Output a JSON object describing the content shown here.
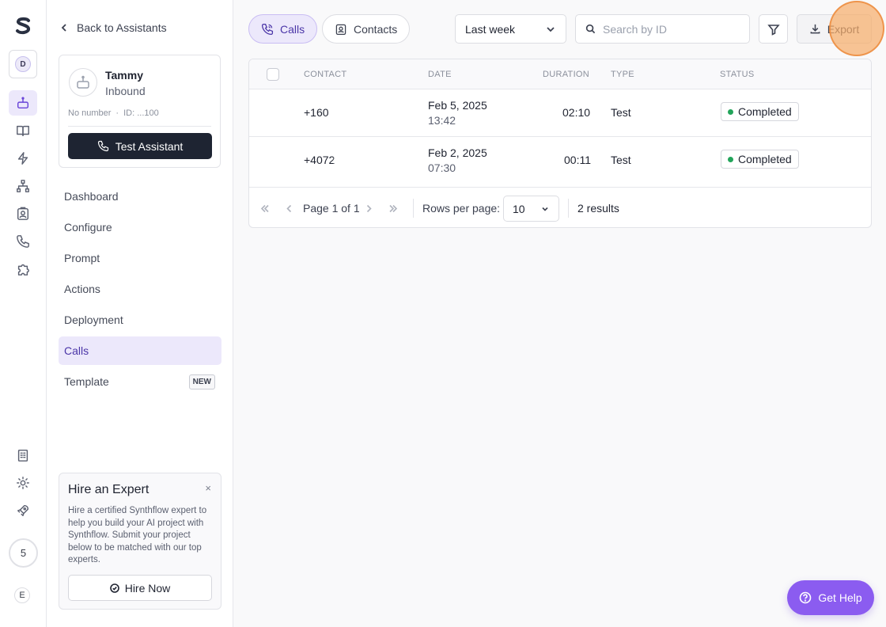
{
  "rail": {
    "workspace_initial": "D",
    "credits": "5",
    "user_initial": "E",
    "accent": "#6a45d8",
    "icons": [
      "assistant-icon",
      "book-icon",
      "bolt-icon",
      "sitemap-icon",
      "contact-icon",
      "phone-icon",
      "puzzle-icon",
      "building-icon",
      "gear-icon",
      "rocket-icon"
    ]
  },
  "sidebar": {
    "back_label": "Back to Assistants",
    "assistant": {
      "name": "Tammy",
      "direction": "Inbound",
      "number": "No number",
      "id": "ID: ...100",
      "test_label": "Test Assistant"
    },
    "nav": [
      {
        "label": "Dashboard"
      },
      {
        "label": "Configure"
      },
      {
        "label": "Prompt"
      },
      {
        "label": "Actions"
      },
      {
        "label": "Deployment"
      },
      {
        "label": "Calls",
        "active": true
      },
      {
        "label": "Template",
        "badge": "NEW"
      }
    ],
    "hire": {
      "title": "Hire an Expert",
      "close": "×",
      "description": "Hire a certified Synthflow expert to help you build your AI project with Synthflow. Submit your project below to be matched with our top experts.",
      "button": "Hire Now"
    }
  },
  "toolbar": {
    "tabs": [
      {
        "label": "Calls",
        "icon": "phone-icon",
        "active": true
      },
      {
        "label": "Contacts",
        "icon": "contact-icon"
      }
    ],
    "range": "Last week",
    "search_placeholder": "Search by ID",
    "export_label": "Export"
  },
  "table": {
    "columns": [
      "CONTACT",
      "DATE",
      "DURATION",
      "TYPE",
      "STATUS"
    ],
    "rows": [
      {
        "contact": "+160",
        "date": "Feb 5, 2025",
        "time": "13:42",
        "duration": "02:10",
        "type": "Test",
        "status": "Completed"
      },
      {
        "contact": "+4072",
        "date": "Feb 2, 2025",
        "time": "07:30",
        "duration": "00:11",
        "type": "Test",
        "status": "Completed"
      }
    ],
    "pagination": {
      "page_label": "Page 1 of 1",
      "rows_per_page_label": "Rows per page:",
      "rows_per_page": "10",
      "results": "2 results"
    }
  },
  "help_label": "Get Help",
  "colors": {
    "status_completed": "#22a45a",
    "primary_button": "#1e2432",
    "help_button": "#8b5cf0"
  }
}
